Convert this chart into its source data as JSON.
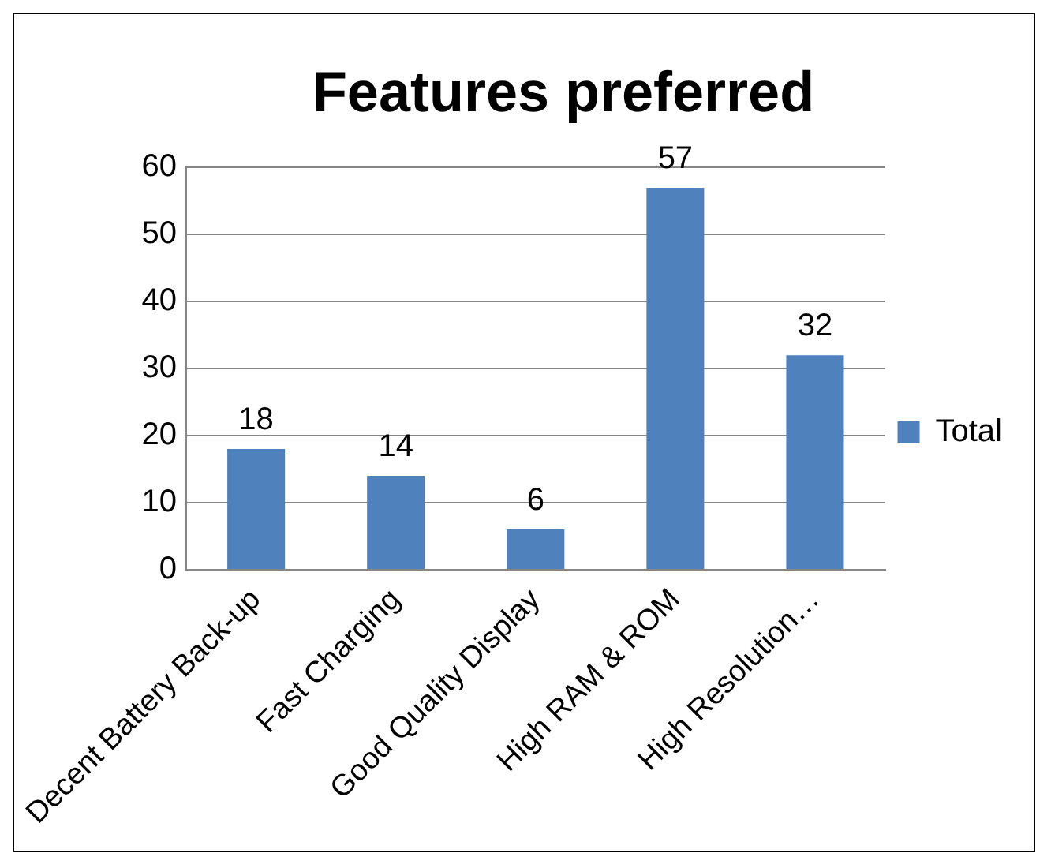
{
  "chart_data": {
    "type": "bar",
    "title": "Features preferred",
    "categories": [
      "Decent Battery Back-up",
      "Fast Charging",
      "Good Quality Display",
      "High RAM & ROM",
      "High Resolution…"
    ],
    "series": [
      {
        "name": "Total",
        "color": "#4f81bd",
        "values": [
          18,
          14,
          6,
          57,
          32
        ]
      }
    ],
    "ylim": [
      0,
      60
    ],
    "yticks": [
      0,
      10,
      20,
      30,
      40,
      50,
      60
    ],
    "grid": "y",
    "legend": "right",
    "data_labels": true
  }
}
